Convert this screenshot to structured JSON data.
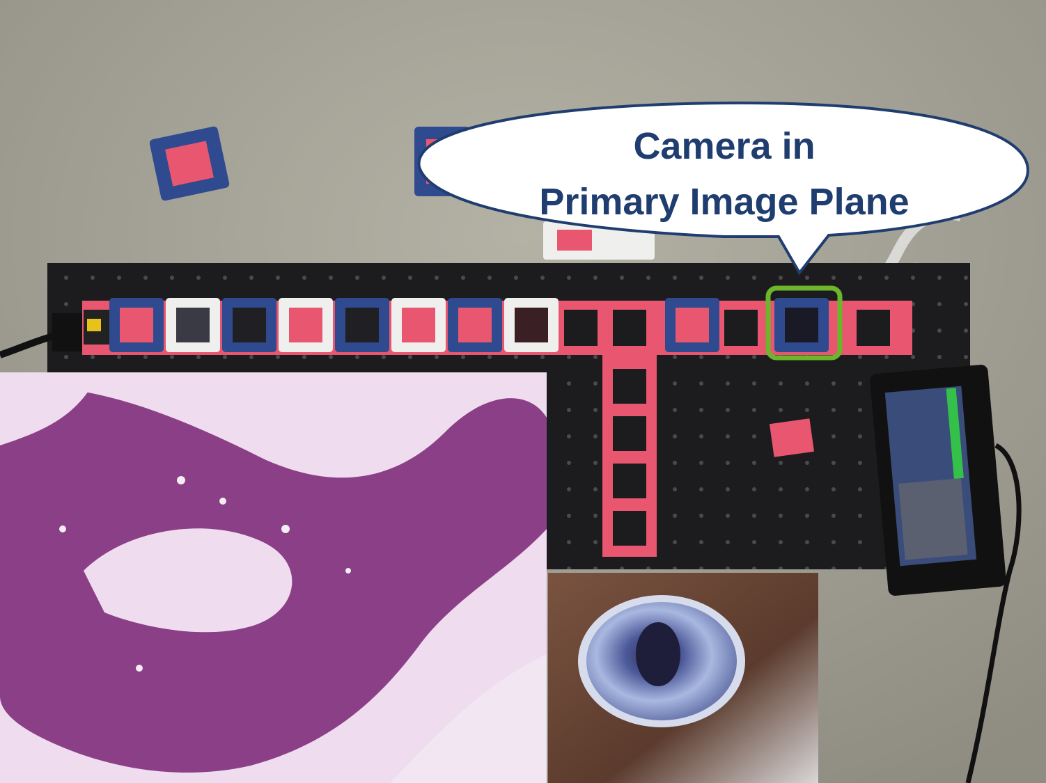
{
  "callout": {
    "line1": "Camera in",
    "line2": "Primary Image Plane"
  },
  "colors": {
    "table": "#a6a497",
    "breadboard": "#1c1c1e",
    "rail_pink": "#e8566f",
    "cube_blue": "#2f4a8f",
    "cube_white": "#efefee",
    "highlight_green": "#6db52b",
    "callout_border": "#1f3d6e",
    "callout_text": "#1f3d6e",
    "tissue_purple": "#8a3f86",
    "tissue_light": "#efdcef"
  },
  "insets": {
    "microscope_view": "histology slide micrograph (purple stained tissue)",
    "zoom_view": "close-up of eye"
  },
  "icons": [
    "speech-bubble",
    "camera-highlight-box",
    "display-screen"
  ]
}
